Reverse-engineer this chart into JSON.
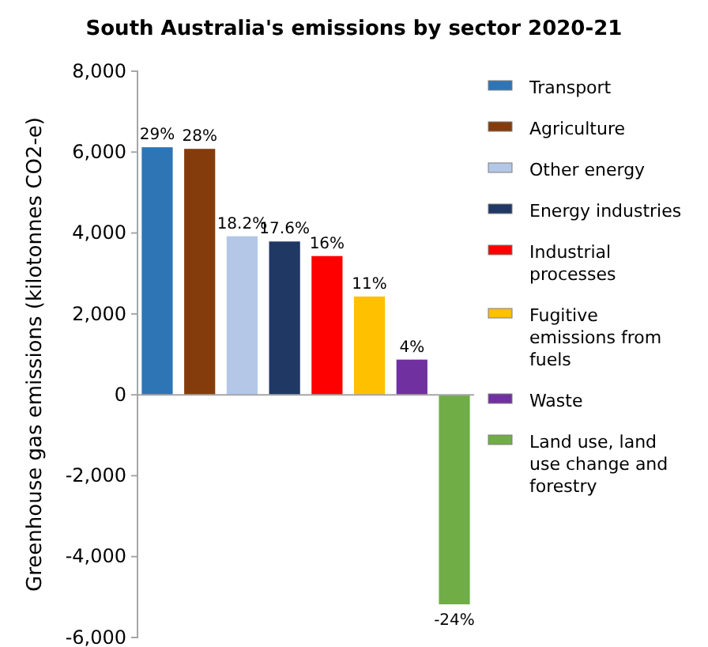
{
  "chart_data": {
    "type": "bar",
    "title": "South Australia's emissions by sector 2020-21",
    "ylabel": "Greenhouse gas emissions (kilotonnes CO2-e)",
    "categories": [
      null,
      null,
      null,
      null,
      null,
      null,
      null,
      null
    ],
    "series": [
      {
        "name": "Transport",
        "color": "#2e75b6",
        "values": [
          6120,
          null,
          null,
          null,
          null,
          null,
          null,
          null
        ]
      },
      {
        "name": "Agriculture",
        "color": "#843c0c",
        "values": [
          null,
          6080,
          null,
          null,
          null,
          null,
          null,
          null
        ]
      },
      {
        "name": "Other energy",
        "color": "#b4c7e7",
        "values": [
          null,
          null,
          3920,
          null,
          null,
          null,
          null,
          null
        ]
      },
      {
        "name": "Energy industries",
        "color": "#203864",
        "values": [
          null,
          null,
          null,
          3790,
          null,
          null,
          null,
          null
        ]
      },
      {
        "name": "Industrial processes",
        "color": "#ff0000",
        "values": [
          null,
          null,
          null,
          null,
          3430,
          null,
          null,
          null
        ]
      },
      {
        "name": "Fugitive emissions from fuels",
        "color": "#ffc000",
        "values": [
          null,
          null,
          null,
          null,
          null,
          2430,
          null,
          null
        ]
      },
      {
        "name": "Waste",
        "color": "#7030a0",
        "values": [
          null,
          null,
          null,
          null,
          null,
          null,
          870,
          null
        ]
      },
      {
        "name": "Land use, land use change and forestry",
        "color": "#70ad47",
        "values": [
          null,
          null,
          null,
          null,
          null,
          null,
          null,
          -5180
        ]
      }
    ],
    "annotations": [
      {
        "text": "29%",
        "y": 6120
      },
      {
        "text": "28%",
        "y": 6080
      },
      {
        "text": "18.2%",
        "y": 3920
      },
      {
        "text": "17.6%",
        "y": 3790
      },
      {
        "text": "16%",
        "y": 3430
      },
      {
        "text": "11%",
        "y": 2430
      },
      {
        "text": "4%",
        "y": 870
      },
      {
        "text": "-24%",
        "y": -5180
      }
    ],
    "ylim": [
      -6000,
      8000
    ],
    "yticks": [
      {
        "value": -6000,
        "label": "-6,000"
      },
      {
        "value": -4000,
        "label": "-4,000"
      },
      {
        "value": -2000,
        "label": "-2,000"
      },
      0,
      {
        "value": 2000,
        "label": "2,000"
      },
      {
        "value": 4000,
        "label": "4,000"
      },
      {
        "value": 6000,
        "label": "6,000"
      },
      {
        "value": 8000,
        "label": "8,000"
      }
    ],
    "tick_labels": "y",
    "legend": "right"
  }
}
